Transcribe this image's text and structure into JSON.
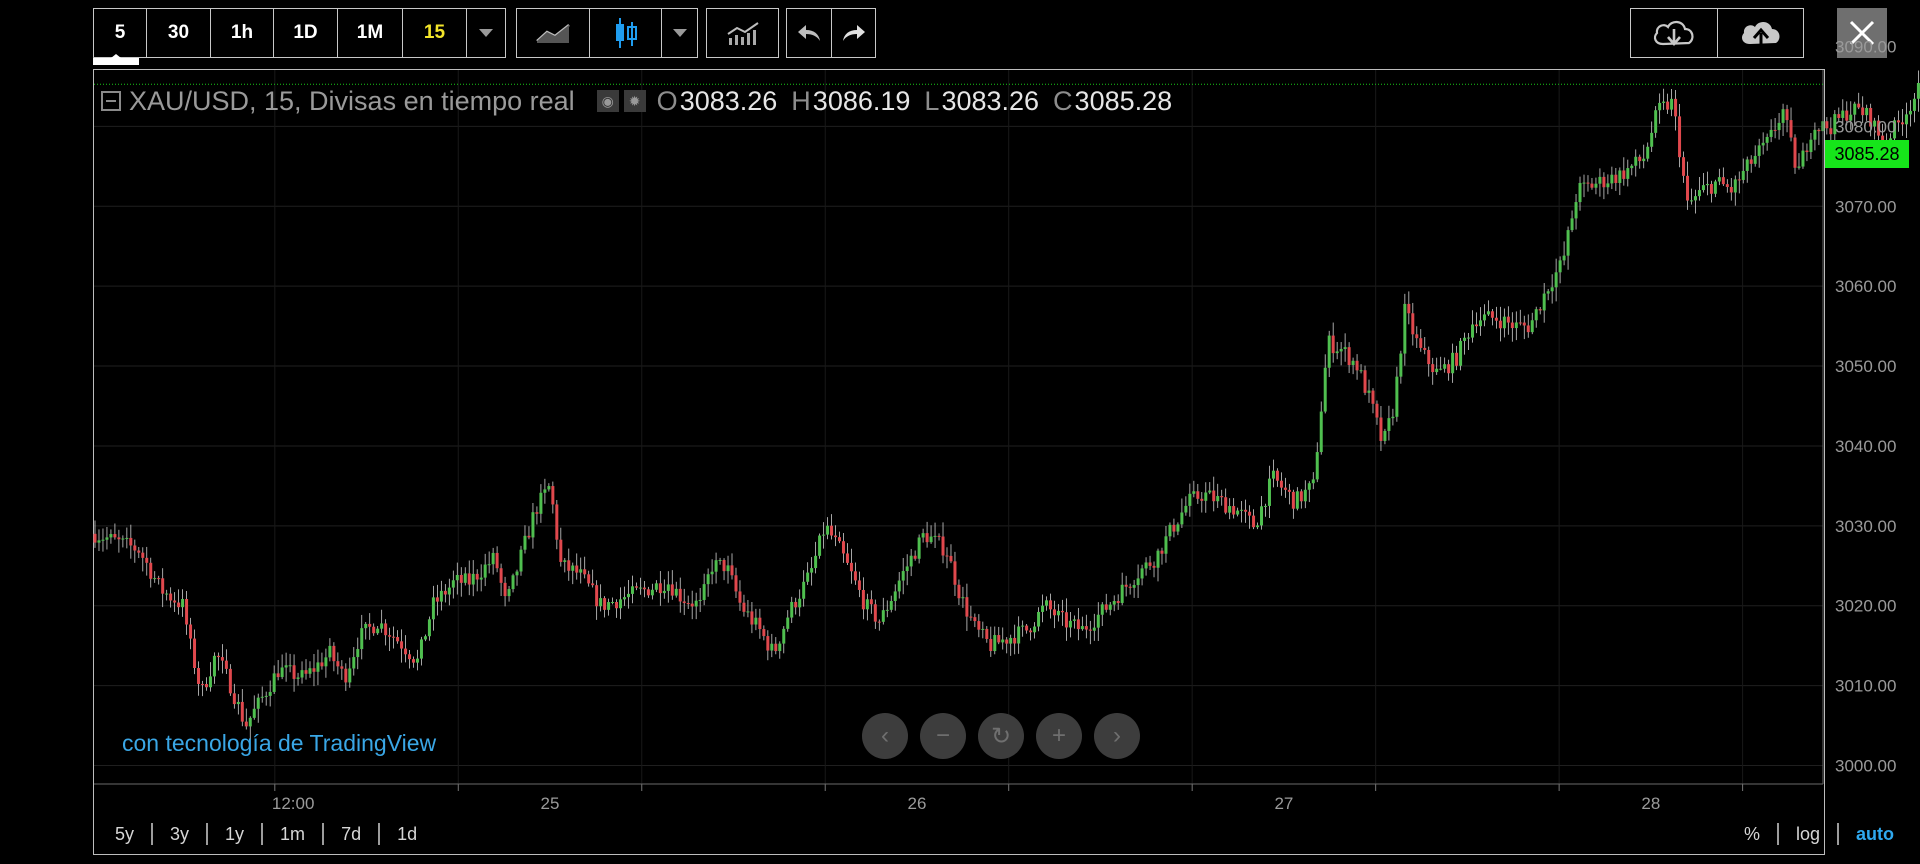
{
  "toolbar": {
    "intervals": [
      {
        "label": "5",
        "active": false
      },
      {
        "label": "30",
        "active": false
      },
      {
        "label": "1h",
        "active": false
      },
      {
        "label": "1D",
        "active": false
      },
      {
        "label": "1M",
        "active": false
      },
      {
        "label": "15",
        "active": true
      }
    ],
    "chart_styles": [
      "line-chart-icon",
      "candlestick-icon"
    ],
    "icons": {
      "dropdown": "chevron-down-icon",
      "indicators": "indicators-icon",
      "undo": "undo-icon",
      "redo": "redo-icon",
      "load": "cloud-download-icon",
      "save": "cloud-upload-icon",
      "close": "close-icon"
    }
  },
  "legend": {
    "symbol": "XAU/USD, 15, Divisas en tiempo real",
    "open_label": "O",
    "open": "3083.26",
    "high_label": "H",
    "high": "3086.19",
    "low_label": "L",
    "low": "3083.26",
    "close_label": "C",
    "close": "3085.28"
  },
  "last_price_tag": "3085.28",
  "watermark": "con tecnología de TradingView",
  "range_buttons": [
    "5y",
    "3y",
    "1y",
    "1m",
    "7d",
    "1d"
  ],
  "scale_buttons": [
    {
      "label": "%",
      "active": false
    },
    {
      "label": "log",
      "active": false
    },
    {
      "label": "auto",
      "active": true
    }
  ],
  "colors": {
    "up": "#4fbf4f",
    "down": "#e0484d",
    "price_line": "#18c718",
    "price_tag": "#16e51a",
    "active_interval": "#f3e52a",
    "watermark": "#3aa7e6",
    "active_scale": "#2fa8ee"
  },
  "chart_data": {
    "type": "candlestick",
    "title": "XAU/USD, 15, Divisas en tiempo real",
    "y_ticks": [
      "3000.00",
      "3010.00",
      "3020.00",
      "3030.00",
      "3040.00",
      "3050.00",
      "3060.00",
      "3070.00",
      "3080.00",
      "3090.00"
    ],
    "ylim": [
      3000,
      3090
    ],
    "x_ticks": [
      {
        "label": "12:00",
        "pos": 0.3
      },
      {
        "label": "25",
        "pos": 1.0
      },
      {
        "label": "26",
        "pos": 2.0
      },
      {
        "label": "27",
        "pos": 3.0
      },
      {
        "label": "28",
        "pos": 4.0
      }
    ],
    "xlim": [
      -0.24,
      4.48
    ],
    "last_price": 3085.28,
    "grid": true,
    "close_path": [
      [
        -0.24,
        3029
      ],
      [
        -0.12,
        3027
      ],
      [
        -0.06,
        3022
      ],
      [
        0.0,
        3020
      ],
      [
        0.02,
        3015
      ],
      [
        0.05,
        3009
      ],
      [
        0.09,
        3014
      ],
      [
        0.13,
        3010
      ],
      [
        0.17,
        3005
      ],
      [
        0.21,
        3008
      ],
      [
        0.26,
        3012
      ],
      [
        0.33,
        3011
      ],
      [
        0.4,
        3014
      ],
      [
        0.44,
        3011
      ],
      [
        0.48,
        3016
      ],
      [
        0.53,
        3018
      ],
      [
        0.58,
        3016
      ],
      [
        0.64,
        3013
      ],
      [
        0.68,
        3020
      ],
      [
        0.74,
        3023
      ],
      [
        0.78,
        3023
      ],
      [
        0.85,
        3026
      ],
      [
        0.88,
        3020
      ],
      [
        0.92,
        3026
      ],
      [
        0.96,
        3032
      ],
      [
        1.0,
        3035
      ],
      [
        1.03,
        3025
      ],
      [
        1.08,
        3024
      ],
      [
        1.14,
        3020
      ],
      [
        1.2,
        3021
      ],
      [
        1.26,
        3022
      ],
      [
        1.32,
        3023
      ],
      [
        1.36,
        3021
      ],
      [
        1.41,
        3020
      ],
      [
        1.44,
        3025
      ],
      [
        1.48,
        3025
      ],
      [
        1.52,
        3020
      ],
      [
        1.57,
        3017
      ],
      [
        1.61,
        3014
      ],
      [
        1.65,
        3019
      ],
      [
        1.71,
        3024
      ],
      [
        1.75,
        3030
      ],
      [
        1.79,
        3027
      ],
      [
        1.82,
        3024
      ],
      [
        1.86,
        3020
      ],
      [
        1.9,
        3018
      ],
      [
        1.95,
        3023
      ],
      [
        2.02,
        3029
      ],
      [
        2.08,
        3027
      ],
      [
        2.12,
        3021
      ],
      [
        2.16,
        3017
      ],
      [
        2.2,
        3015
      ],
      [
        2.25,
        3016
      ],
      [
        2.3,
        3017
      ],
      [
        2.35,
        3020
      ],
      [
        2.4,
        3018
      ],
      [
        2.45,
        3017
      ],
      [
        2.5,
        3019
      ],
      [
        2.56,
        3022
      ],
      [
        2.6,
        3024
      ],
      [
        2.65,
        3026
      ],
      [
        2.7,
        3030
      ],
      [
        2.74,
        3033
      ],
      [
        2.78,
        3034
      ],
      [
        2.83,
        3033
      ],
      [
        2.87,
        3032
      ],
      [
        2.92,
        3030
      ],
      [
        2.97,
        3036
      ],
      [
        3.03,
        3033
      ],
      [
        3.08,
        3035
      ],
      [
        3.12,
        3053
      ],
      [
        3.16,
        3052
      ],
      [
        3.2,
        3050
      ],
      [
        3.24,
        3045
      ],
      [
        3.27,
        3040
      ],
      [
        3.3,
        3045
      ],
      [
        3.33,
        3057
      ],
      [
        3.37,
        3052
      ],
      [
        3.42,
        3049
      ],
      [
        3.47,
        3051
      ],
      [
        3.52,
        3056
      ],
      [
        3.58,
        3056
      ],
      [
        3.63,
        3055
      ],
      [
        3.67,
        3055
      ],
      [
        3.72,
        3060
      ],
      [
        3.76,
        3063
      ],
      [
        3.8,
        3072
      ],
      [
        3.86,
        3073
      ],
      [
        3.92,
        3074
      ],
      [
        3.98,
        3076
      ],
      [
        4.02,
        3082
      ],
      [
        4.06,
        3083
      ],
      [
        4.1,
        3070
      ],
      [
        4.14,
        3072
      ],
      [
        4.18,
        3073
      ],
      [
        4.22,
        3072
      ],
      [
        4.28,
        3076
      ],
      [
        4.32,
        3078
      ],
      [
        4.36,
        3082
      ],
      [
        4.4,
        3074
      ],
      [
        4.44,
        3080
      ],
      [
        4.49,
        3080
      ],
      [
        4.54,
        3082
      ],
      [
        4.57,
        3082
      ],
      [
        4.6,
        3081
      ],
      [
        4.63,
        3078
      ],
      [
        4.67,
        3080
      ],
      [
        4.71,
        3083
      ],
      [
        4.74,
        3085.28
      ]
    ]
  }
}
